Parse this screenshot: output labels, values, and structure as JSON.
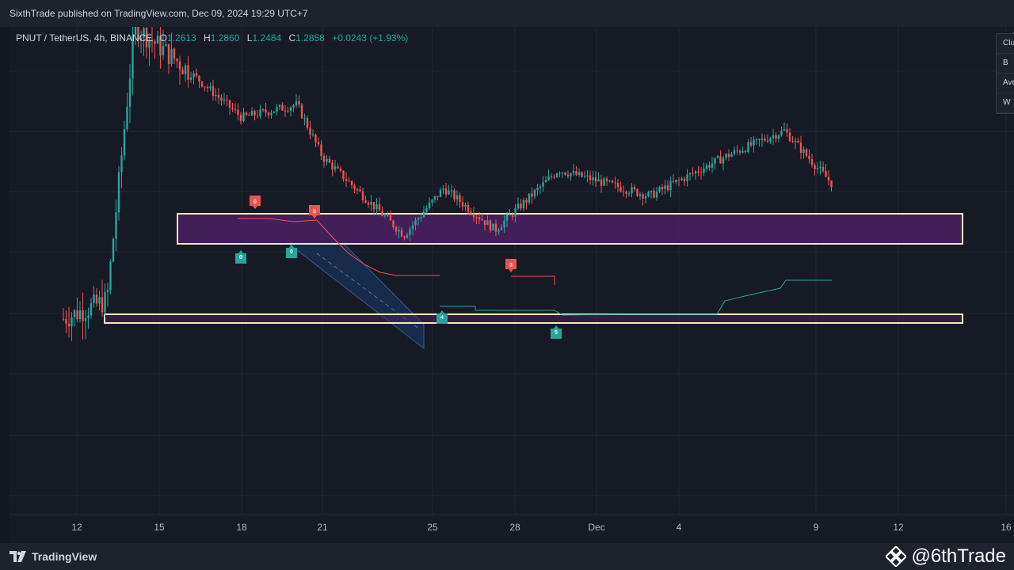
{
  "header": {
    "publisher_text": "SixthTrade published on TradingView.com, Dec 09, 2024 19:29 UTC+7"
  },
  "legend": {
    "symbol": "PNUT / TetherUS, 4h, BINANCE",
    "o_label": "O",
    "o_value": "1.2613",
    "h_label": "H",
    "h_value": "1.2860",
    "l_label": "L",
    "l_value": "1.2484",
    "c_label": "C",
    "c_value": "1.2858",
    "change": "+0.0243 (+1.93%)"
  },
  "side_panel": {
    "rows": [
      "Clu",
      "B",
      "Ave",
      "W"
    ]
  },
  "footer": {
    "logo_text": "TradingView",
    "watermark_text": "@6thTrade"
  },
  "colors": {
    "background": "#161a25",
    "up": "#26a69a",
    "down": "#ef5350",
    "zone_fill": "#5b2a6e",
    "zone_border": "#f3e8c0",
    "channel": "#1e3a6a"
  },
  "chart_data": {
    "type": "candlestick",
    "symbol": "PNUT / TetherUS",
    "timeframe": "4h",
    "exchange": "BINANCE",
    "x_tick_labels": [
      "12",
      "15",
      "18",
      "21",
      "25",
      "28",
      "Dec",
      "4",
      "9",
      "12",
      "16"
    ],
    "ohlc_last": {
      "open": 1.2613,
      "high": 1.286,
      "low": 1.2484,
      "close": 1.2858,
      "change": 0.0243,
      "change_pct": 1.93
    },
    "price_path_approx": [
      {
        "date": "Nov 11",
        "price": 0.78
      },
      {
        "date": "Nov 13",
        "price": 0.85
      },
      {
        "date": "Nov 14",
        "price": 1.9
      },
      {
        "date": "Nov 16",
        "price": 1.75
      },
      {
        "date": "Nov 18",
        "price": 1.55
      },
      {
        "date": "Nov 20",
        "price": 1.6
      },
      {
        "date": "Nov 21",
        "price": 1.4
      },
      {
        "date": "Nov 24",
        "price": 1.1
      },
      {
        "date": "Nov 25",
        "price": 1.28
      },
      {
        "date": "Nov 27",
        "price": 1.12
      },
      {
        "date": "Nov 29",
        "price": 1.35
      },
      {
        "date": "Dec 3",
        "price": 1.25
      },
      {
        "date": "Dec 5",
        "price": 1.4
      },
      {
        "date": "Dec 7",
        "price": 1.5
      },
      {
        "date": "Dec 9",
        "price": 1.29
      }
    ],
    "zones": [
      {
        "name": "resistance",
        "color": "#5b2a6e"
      },
      {
        "name": "support",
        "color": "#f3e8c0"
      }
    ],
    "markers": [
      {
        "label": "0",
        "type": "sell"
      },
      {
        "label": "0",
        "type": "sell"
      },
      {
        "label": "3",
        "type": "sell"
      },
      {
        "label": "0",
        "type": "buy"
      },
      {
        "label": "0",
        "type": "buy"
      },
      {
        "label": "4",
        "type": "buy"
      },
      {
        "label": "5",
        "type": "buy"
      }
    ],
    "grid": true
  }
}
